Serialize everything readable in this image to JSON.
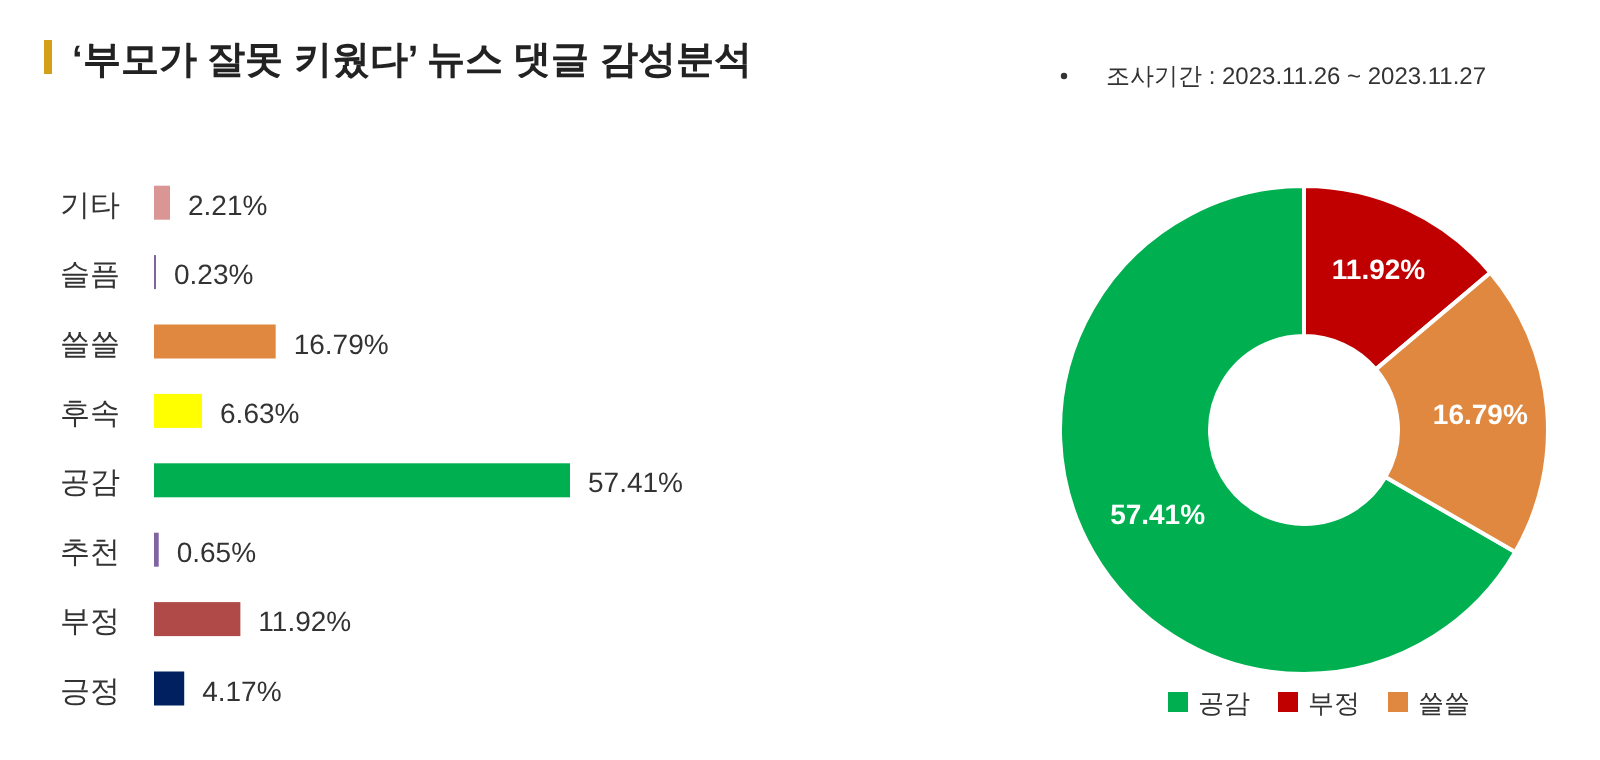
{
  "chart_data": [
    {
      "type": "bar",
      "orientation": "horizontal",
      "title": "‘부모가 잘못 키웠다’ 뉴스 댓글 감성분석",
      "categories": [
        "기타",
        "슬픔",
        "쓸쓸",
        "후속",
        "공감",
        "추천",
        "부정",
        "긍정"
      ],
      "values": [
        2.21,
        0.23,
        16.79,
        6.63,
        57.41,
        0.65,
        11.92,
        4.17
      ],
      "colors": [
        "#d99694",
        "#8064a2",
        "#e0883f",
        "#ffff00",
        "#00b050",
        "#8064a2",
        "#b04a48",
        "#002060"
      ],
      "value_labels": [
        "2.21%",
        "0.23%",
        "16.79%",
        "6.63%",
        "57.41%",
        "0.65%",
        "11.92%",
        "4.17%"
      ]
    },
    {
      "type": "donut",
      "annotations": [
        "조사기간 : 2023.11.26 ~ 2023.11.27"
      ],
      "categories": [
        "공감",
        "부정",
        "쓸쓸"
      ],
      "values": [
        57.41,
        11.92,
        16.79
      ],
      "colors": [
        "#00b050",
        "#c00000",
        "#e0883f"
      ],
      "value_labels": [
        "57.41%",
        "11.92%",
        "16.79%"
      ],
      "legend": "bottom"
    }
  ]
}
